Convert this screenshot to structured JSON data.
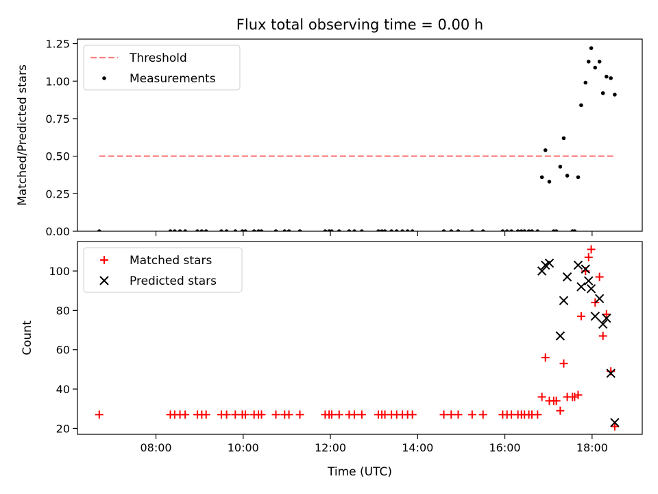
{
  "title": "Flux total observing time = 0.00 h",
  "colors": {
    "threshold": "#ff7f7f",
    "measurements": "#000000",
    "matched": "#ff0000",
    "predicted": "#000000"
  },
  "chart_data": [
    {
      "type": "scatter",
      "xlabel": "",
      "ylabel": "Matched/Predicted stars",
      "xlim": [
        6.2,
        19.15
      ],
      "ylim": [
        0.0,
        1.28
      ],
      "yticks": [
        0.0,
        0.25,
        0.5,
        0.75,
        1.0,
        1.25
      ],
      "ytick_labels": [
        "0.00",
        "0.25",
        "0.50",
        "0.75",
        "1.00",
        "1.25"
      ],
      "threshold": {
        "name": "Threshold",
        "y": 0.5,
        "x_range": [
          6.7,
          18.52
        ]
      },
      "legend": {
        "position": "upper left",
        "entries": [
          "Threshold",
          "Measurements"
        ]
      },
      "series": [
        {
          "name": "Measurements",
          "points": [
            [
              6.7,
              0
            ],
            [
              8.33,
              0
            ],
            [
              8.43,
              0
            ],
            [
              8.55,
              0
            ],
            [
              8.67,
              0
            ],
            [
              8.95,
              0
            ],
            [
              9.05,
              0
            ],
            [
              9.15,
              0
            ],
            [
              9.5,
              0
            ],
            [
              9.62,
              0
            ],
            [
              9.82,
              0
            ],
            [
              9.98,
              0
            ],
            [
              10.05,
              0
            ],
            [
              10.25,
              0
            ],
            [
              10.35,
              0
            ],
            [
              10.42,
              0
            ],
            [
              10.75,
              0
            ],
            [
              10.95,
              0
            ],
            [
              11.05,
              0
            ],
            [
              11.3,
              0
            ],
            [
              11.88,
              0
            ],
            [
              11.97,
              0
            ],
            [
              12.03,
              0
            ],
            [
              12.2,
              0
            ],
            [
              12.43,
              0
            ],
            [
              12.55,
              0
            ],
            [
              12.72,
              0
            ],
            [
              13.1,
              0
            ],
            [
              13.18,
              0
            ],
            [
              13.25,
              0
            ],
            [
              13.4,
              0
            ],
            [
              13.52,
              0
            ],
            [
              13.65,
              0
            ],
            [
              13.77,
              0
            ],
            [
              13.88,
              0
            ],
            [
              14.6,
              0
            ],
            [
              14.77,
              0
            ],
            [
              14.93,
              0
            ],
            [
              15.25,
              0
            ],
            [
              15.5,
              0
            ],
            [
              15.95,
              0
            ],
            [
              16.05,
              0
            ],
            [
              16.15,
              0
            ],
            [
              16.3,
              0
            ],
            [
              16.38,
              0
            ],
            [
              16.45,
              0
            ],
            [
              16.55,
              0
            ],
            [
              16.62,
              0
            ],
            [
              16.75,
              0
            ],
            [
              16.85,
              0.36
            ],
            [
              16.93,
              0.54
            ],
            [
              17.02,
              0.33
            ],
            [
              17.12,
              0
            ],
            [
              17.18,
              0
            ],
            [
              17.27,
              0.43
            ],
            [
              17.35,
              0.62
            ],
            [
              17.43,
              0.37
            ],
            [
              17.55,
              0
            ],
            [
              17.6,
              0
            ],
            [
              17.68,
              0.36
            ],
            [
              17.75,
              0.84
            ],
            [
              17.85,
              0.99
            ],
            [
              17.92,
              1.13
            ],
            [
              17.98,
              1.22
            ],
            [
              18.07,
              1.09
            ],
            [
              18.17,
              1.13
            ],
            [
              18.25,
              0.92
            ],
            [
              18.33,
              1.03
            ],
            [
              18.43,
              1.02
            ],
            [
              18.52,
              0.91
            ]
          ]
        }
      ]
    },
    {
      "type": "scatter",
      "xlabel": "Time (UTC)",
      "ylabel": "Count",
      "xlim": [
        6.2,
        19.15
      ],
      "ylim": [
        17,
        115
      ],
      "yticks": [
        20,
        40,
        60,
        80,
        100
      ],
      "ytick_labels": [
        "20",
        "40",
        "60",
        "80",
        "100"
      ],
      "xticks": [
        8,
        10,
        12,
        14,
        16,
        18
      ],
      "xtick_labels": [
        "08:00",
        "10:00",
        "12:00",
        "14:00",
        "16:00",
        "18:00"
      ],
      "legend": {
        "position": "upper left",
        "entries": [
          "Matched stars",
          "Predicted stars"
        ]
      },
      "series": [
        {
          "name": "Matched stars",
          "marker": "plus",
          "points": [
            [
              6.7,
              27
            ],
            [
              8.33,
              27
            ],
            [
              8.43,
              27
            ],
            [
              8.55,
              27
            ],
            [
              8.67,
              27
            ],
            [
              8.95,
              27
            ],
            [
              9.05,
              27
            ],
            [
              9.15,
              27
            ],
            [
              9.5,
              27
            ],
            [
              9.62,
              27
            ],
            [
              9.82,
              27
            ],
            [
              9.98,
              27
            ],
            [
              10.05,
              27
            ],
            [
              10.25,
              27
            ],
            [
              10.35,
              27
            ],
            [
              10.42,
              27
            ],
            [
              10.75,
              27
            ],
            [
              10.95,
              27
            ],
            [
              11.05,
              27
            ],
            [
              11.3,
              27
            ],
            [
              11.88,
              27
            ],
            [
              11.97,
              27
            ],
            [
              12.03,
              27
            ],
            [
              12.2,
              27
            ],
            [
              12.43,
              27
            ],
            [
              12.55,
              27
            ],
            [
              12.72,
              27
            ],
            [
              13.1,
              27
            ],
            [
              13.18,
              27
            ],
            [
              13.25,
              27
            ],
            [
              13.4,
              27
            ],
            [
              13.52,
              27
            ],
            [
              13.65,
              27
            ],
            [
              13.77,
              27
            ],
            [
              13.88,
              27
            ],
            [
              14.6,
              27
            ],
            [
              14.77,
              27
            ],
            [
              14.93,
              27
            ],
            [
              15.25,
              27
            ],
            [
              15.5,
              27
            ],
            [
              15.95,
              27
            ],
            [
              16.05,
              27
            ],
            [
              16.15,
              27
            ],
            [
              16.3,
              27
            ],
            [
              16.38,
              27
            ],
            [
              16.45,
              27
            ],
            [
              16.55,
              27
            ],
            [
              16.62,
              27
            ],
            [
              16.75,
              27
            ],
            [
              16.85,
              36
            ],
            [
              16.93,
              56
            ],
            [
              17.02,
              34
            ],
            [
              17.12,
              34
            ],
            [
              17.18,
              34
            ],
            [
              17.27,
              29
            ],
            [
              17.35,
              53
            ],
            [
              17.43,
              36
            ],
            [
              17.55,
              36
            ],
            [
              17.6,
              36
            ],
            [
              17.68,
              37
            ],
            [
              17.75,
              77
            ],
            [
              17.85,
              100
            ],
            [
              17.92,
              107
            ],
            [
              17.98,
              111
            ],
            [
              18.07,
              84
            ],
            [
              18.17,
              97
            ],
            [
              18.25,
              67
            ],
            [
              18.33,
              78
            ],
            [
              18.43,
              49
            ],
            [
              18.52,
              21
            ]
          ]
        },
        {
          "name": "Predicted stars",
          "marker": "x",
          "points": [
            [
              16.85,
              100
            ],
            [
              16.93,
              103
            ],
            [
              17.02,
              104
            ],
            [
              17.27,
              67
            ],
            [
              17.35,
              85
            ],
            [
              17.43,
              97
            ],
            [
              17.68,
              103
            ],
            [
              17.75,
              92
            ],
            [
              17.85,
              101
            ],
            [
              17.92,
              95
            ],
            [
              17.98,
              91
            ],
            [
              18.07,
              77
            ],
            [
              18.17,
              86
            ],
            [
              18.25,
              73
            ],
            [
              18.33,
              76
            ],
            [
              18.43,
              48
            ],
            [
              18.52,
              23
            ]
          ]
        }
      ]
    }
  ]
}
